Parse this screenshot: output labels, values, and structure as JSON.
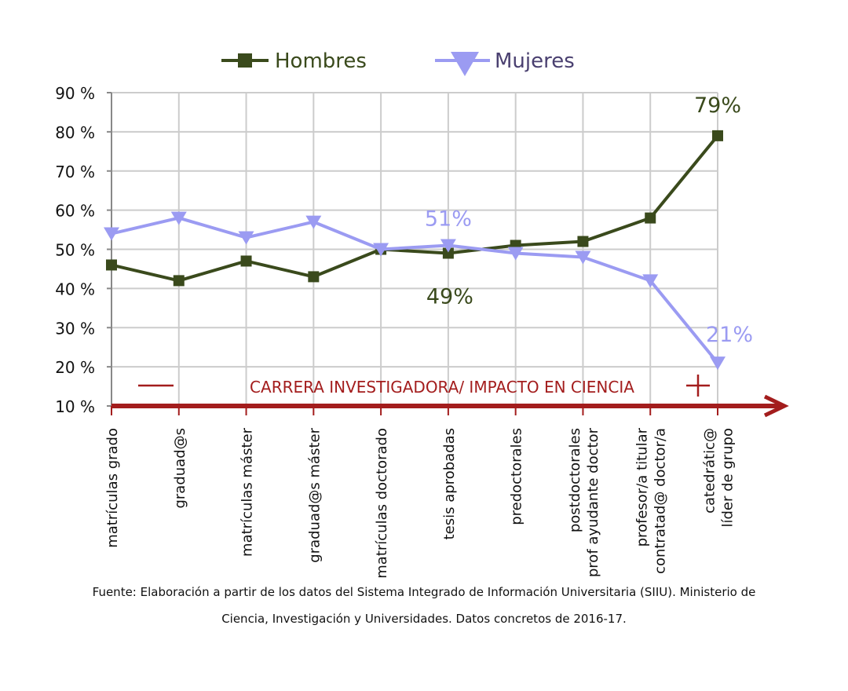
{
  "chart_data": {
    "type": "line",
    "categories": [
      "matrículas grado",
      "graduad@s",
      "matrículas máster",
      "graduad@s máster",
      "matrículas doctorado",
      "tesis aprobadas",
      "predoctorales",
      "postdoctorales\nprof ayudante doctor",
      "profesor/a titular\ncontratad@ doctor/a",
      "catedrátic@\nlíder de grupo"
    ],
    "series": [
      {
        "name": "Hombres",
        "values": [
          46,
          42,
          47,
          43,
          50,
          49,
          51,
          52,
          58,
          79
        ],
        "color": "#3a4a1c",
        "marker": "square"
      },
      {
        "name": "Mujeres",
        "values": [
          54,
          58,
          53,
          57,
          50,
          51,
          49,
          48,
          42,
          21
        ],
        "color": "#9b9bf2",
        "marker": "triangle-down"
      }
    ],
    "y_ticks": [
      "10 %",
      "20 %",
      "30 %",
      "40 %",
      "50 %",
      "60 %",
      "70 %",
      "80 %",
      "90 %"
    ],
    "ylim": [
      10,
      90
    ],
    "grid": true,
    "legend_position": "top",
    "annotations": [
      {
        "text": "79%",
        "series": 0,
        "index": 9,
        "color": "#3a4a1c"
      },
      {
        "text": "49%",
        "series": 0,
        "index": 5,
        "color": "#3a4a1c"
      },
      {
        "text": "51%",
        "series": 1,
        "index": 5,
        "color": "#9b9bf2"
      },
      {
        "text": "21%",
        "series": 1,
        "index": 9,
        "color": "#9b9bf2"
      }
    ],
    "arrow_label": {
      "minus": "—",
      "text": "CARRERA INVESTIGADORA/ IMPACTO EN CIENCIA",
      "plus": "+",
      "color": "#a31d1d"
    }
  },
  "caption": {
    "line1": "Fuente: Elaboración a partir de los datos del Sistema Integrado de Información Universitaria (SIIU). Ministerio de",
    "line2": "Ciencia, Investigación y Universidades. Datos concretos de 2016-17."
  }
}
